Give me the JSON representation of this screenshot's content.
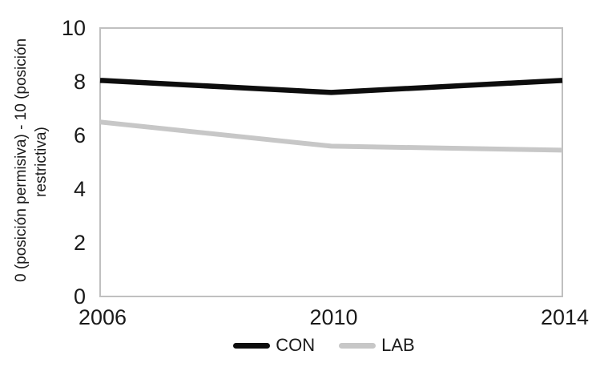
{
  "chart_data": {
    "type": "line",
    "categories": [
      "2006",
      "2010",
      "2014"
    ],
    "x": [
      2006,
      2010,
      2014
    ],
    "series": [
      {
        "name": "CON",
        "color": "#0d0d0d",
        "stroke_width": 6.5,
        "values": [
          8.05,
          7.6,
          8.05
        ]
      },
      {
        "name": "LAB",
        "color": "#c7c7c7",
        "stroke_width": 6,
        "values": [
          6.5,
          5.6,
          5.45
        ]
      }
    ],
    "title": "",
    "xlabel": "",
    "ylabel": "0 (posición permisiva) - 10 (posición restrictiva)",
    "ylabel_lines": [
      "0 (posición permisiva) - 10 (posición",
      "restrictiva)"
    ],
    "yticks": [
      0,
      2,
      4,
      6,
      8,
      10
    ],
    "ylim": [
      0,
      10
    ],
    "grid": false,
    "plot_border_color": "#c0c0c0",
    "legend_position": "bottom-center"
  }
}
